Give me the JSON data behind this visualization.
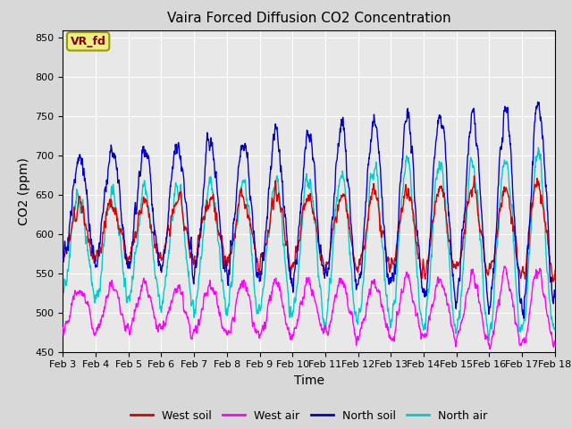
{
  "title": "Vaira Forced Diffusion CO2 Concentration",
  "xlabel": "Time",
  "ylabel": "CO2 (ppm)",
  "ylim": [
    450,
    860
  ],
  "yticks": [
    450,
    500,
    550,
    600,
    650,
    700,
    750,
    800,
    850
  ],
  "xlim_days": [
    3,
    18
  ],
  "xtick_labels": [
    "Feb 3",
    "Feb 4",
    "Feb 5",
    "Feb 6",
    "Feb 7",
    "Feb 8",
    "Feb 9",
    "Feb 10",
    "Feb 11",
    "Feb 12",
    "Feb 13",
    "Feb 14",
    "Feb 15",
    "Feb 16",
    "Feb 17",
    "Feb 18"
  ],
  "colors": {
    "west_soil": "#dd0000",
    "west_air": "#ff00ff",
    "north_soil": "#0000cc",
    "north_air": "#00cccc"
  },
  "legend_labels": [
    "West soil",
    "West air",
    "North soil",
    "North air"
  ],
  "annotation_text": "VR_fd",
  "annotation_box_color": "#eeee88",
  "annotation_box_edge": "#999900",
  "axes_facecolor": "#e8e8e8",
  "fig_facecolor": "#d8d8d8",
  "grid_color": "#ffffff",
  "line_width": 1.0,
  "n_points_per_day": 96,
  "n_days": 16,
  "start_day": 3
}
